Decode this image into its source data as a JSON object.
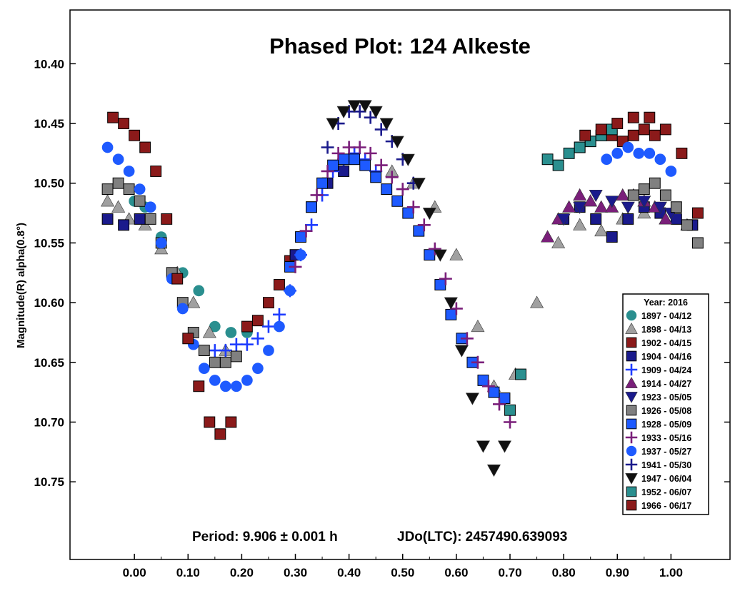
{
  "chart_data": {
    "type": "scatter",
    "title": "Phased Plot: 124 Alkeste",
    "xlabel": "",
    "ylabel": "Magnitude(R) alpha(0.8°)",
    "xlim": [
      -0.12,
      1.11
    ],
    "ylim": [
      10.355,
      10.815
    ],
    "y_inverted": true,
    "grid": false,
    "x_ticks": [
      "0.00",
      "0.10",
      "0.20",
      "0.30",
      "0.40",
      "0.50",
      "0.60",
      "0.70",
      "0.80",
      "0.90",
      "1.00"
    ],
    "y_ticks": [
      "10.40",
      "10.45",
      "10.50",
      "10.55",
      "10.60",
      "10.65",
      "10.70",
      "10.75"
    ],
    "annotation_period": "Period: 9.906 ± 0.001 h",
    "annotation_epoch": "JDo(LTC): 2457490.639093",
    "legend_title": "Year: 2016",
    "legend_position": "right",
    "series": [
      {
        "name": "1897 - 04/12",
        "marker": "circle",
        "color": "#2a8f8f",
        "x": [
          0.0,
          0.02,
          0.05,
          0.09,
          0.12,
          0.15,
          0.18,
          0.21
        ],
        "y": [
          10.515,
          10.52,
          10.545,
          10.575,
          10.59,
          10.62,
          10.625,
          10.625
        ]
      },
      {
        "name": "1898 - 04/13",
        "marker": "triangle-up",
        "color": "#a0a0a0",
        "x": [
          -0.05,
          -0.03,
          -0.01,
          0.02,
          0.05,
          0.08,
          0.11,
          0.14,
          0.17,
          0.48,
          0.52,
          0.56,
          0.6,
          0.64,
          0.67,
          0.71,
          0.75,
          0.79,
          0.83,
          0.87,
          0.91,
          0.95,
          0.99,
          1.03
        ],
        "y": [
          10.515,
          10.52,
          10.53,
          10.535,
          10.555,
          10.575,
          10.6,
          10.625,
          10.64,
          10.49,
          10.5,
          10.52,
          10.56,
          10.62,
          10.67,
          10.66,
          10.6,
          10.55,
          10.535,
          10.54,
          10.53,
          10.525,
          10.53,
          10.535
        ]
      },
      {
        "name": "1902 - 04/15",
        "marker": "square",
        "color": "#8b1a1a",
        "x": [
          0.21,
          0.23,
          0.25,
          0.27,
          0.29,
          0.83,
          0.85,
          0.87,
          0.89,
          0.91,
          0.93,
          0.95,
          0.97
        ],
        "y": [
          10.62,
          10.615,
          10.6,
          10.585,
          10.565,
          10.47,
          10.465,
          10.46,
          10.46,
          10.465,
          10.46,
          10.455,
          10.46
        ]
      },
      {
        "name": "1904 - 04/16",
        "marker": "square",
        "color": "#1a1a8c",
        "x": [
          -0.05,
          -0.02,
          0.01,
          0.3,
          0.33,
          0.36,
          0.39,
          0.8,
          0.83,
          0.86,
          0.89,
          0.92,
          0.95,
          0.98,
          1.01,
          1.04
        ],
        "y": [
          10.53,
          10.535,
          10.53,
          10.56,
          10.52,
          10.5,
          10.49,
          10.53,
          10.52,
          10.53,
          10.545,
          10.53,
          10.52,
          10.525,
          10.53,
          10.535
        ]
      },
      {
        "name": "1909 - 04/24",
        "marker": "plus",
        "color": "#1e3cff",
        "x": [
          0.15,
          0.17,
          0.19,
          0.21,
          0.23,
          0.25,
          0.27,
          0.29,
          0.31,
          0.33,
          0.35,
          0.37,
          0.39,
          0.41,
          0.43,
          0.45
        ],
        "y": [
          10.64,
          10.64,
          10.635,
          10.635,
          10.63,
          10.62,
          10.61,
          10.59,
          10.56,
          10.535,
          10.51,
          10.49,
          10.48,
          10.475,
          10.48,
          10.49
        ]
      },
      {
        "name": "1914 - 04/27",
        "marker": "triangle-up",
        "color": "#7a1f7a",
        "x": [
          0.77,
          0.79,
          0.81,
          0.83,
          0.85,
          0.87,
          0.89,
          0.91,
          0.93,
          0.95,
          0.97,
          0.99
        ],
        "y": [
          10.545,
          10.53,
          10.52,
          10.51,
          10.515,
          10.52,
          10.52,
          10.51,
          10.51,
          10.515,
          10.52,
          10.53
        ]
      },
      {
        "name": "1923 - 05/05",
        "marker": "triangle-down",
        "color": "#1a1a8c",
        "x": [
          0.8,
          0.83,
          0.86,
          0.89,
          0.92,
          0.95,
          0.98,
          1.0
        ],
        "y": [
          10.53,
          10.52,
          10.51,
          10.515,
          10.52,
          10.515,
          10.52,
          10.525
        ]
      },
      {
        "name": "1926 - 05/08",
        "marker": "square",
        "color": "#808080",
        "x": [
          -0.05,
          -0.03,
          -0.01,
          0.01,
          0.03,
          0.05,
          0.07,
          0.09,
          0.11,
          0.13,
          0.15,
          0.17,
          0.19,
          0.93,
          0.95,
          0.97,
          0.99,
          1.01,
          1.03,
          1.05
        ],
        "y": [
          10.505,
          10.5,
          10.505,
          10.515,
          10.53,
          10.55,
          10.575,
          10.6,
          10.625,
          10.64,
          10.65,
          10.65,
          10.645,
          10.51,
          10.505,
          10.5,
          10.51,
          10.52,
          10.535,
          10.55
        ]
      },
      {
        "name": "1928 - 05/09",
        "marker": "square",
        "color": "#1e5aff",
        "x": [
          0.29,
          0.31,
          0.33,
          0.35,
          0.37,
          0.39,
          0.41,
          0.43,
          0.45,
          0.47,
          0.49,
          0.51,
          0.53,
          0.55,
          0.57,
          0.59,
          0.61,
          0.63,
          0.65,
          0.67,
          0.69
        ],
        "y": [
          10.57,
          10.545,
          10.52,
          10.5,
          10.485,
          10.48,
          10.48,
          10.485,
          10.495,
          10.505,
          10.515,
          10.525,
          10.54,
          10.56,
          10.585,
          10.61,
          10.63,
          10.65,
          10.665,
          10.675,
          10.68
        ]
      },
      {
        "name": "1933 - 05/16",
        "marker": "plus",
        "color": "#7a1f7a",
        "x": [
          0.3,
          0.32,
          0.34,
          0.36,
          0.38,
          0.4,
          0.42,
          0.44,
          0.46,
          0.48,
          0.5,
          0.52,
          0.54,
          0.56,
          0.58,
          0.6,
          0.62,
          0.64,
          0.66,
          0.68,
          0.7
        ],
        "y": [
          10.57,
          10.54,
          10.51,
          10.49,
          10.475,
          10.47,
          10.47,
          10.475,
          10.485,
          10.495,
          10.505,
          10.52,
          10.535,
          10.555,
          10.58,
          10.605,
          10.63,
          10.65,
          10.67,
          10.685,
          10.7
        ]
      },
      {
        "name": "1937 - 05/27",
        "marker": "circle",
        "color": "#1e5aff",
        "x": [
          -0.05,
          -0.03,
          -0.01,
          0.01,
          0.03,
          0.05,
          0.07,
          0.09,
          0.11,
          0.13,
          0.15,
          0.17,
          0.19,
          0.21,
          0.23,
          0.25,
          0.27,
          0.29,
          0.31,
          0.88,
          0.9,
          0.92,
          0.94,
          0.96,
          0.98,
          1.0
        ],
        "y": [
          10.47,
          10.48,
          10.49,
          10.505,
          10.52,
          10.55,
          10.58,
          10.605,
          10.635,
          10.655,
          10.665,
          10.67,
          10.67,
          10.665,
          10.655,
          10.64,
          10.62,
          10.59,
          10.56,
          10.48,
          10.475,
          10.47,
          10.475,
          10.475,
          10.48,
          10.49
        ]
      },
      {
        "name": "1941 - 05/30",
        "marker": "plus",
        "color": "#1a1a8c",
        "x": [
          0.36,
          0.38,
          0.4,
          0.42,
          0.44,
          0.46,
          0.48,
          0.5,
          0.52
        ],
        "y": [
          10.47,
          10.45,
          10.44,
          10.44,
          10.445,
          10.455,
          10.465,
          10.48,
          10.5
        ]
      },
      {
        "name": "1947 - 06/04",
        "marker": "triangle-down",
        "color": "#111111",
        "x": [
          0.37,
          0.39,
          0.41,
          0.43,
          0.45,
          0.47,
          0.49,
          0.51,
          0.53,
          0.55,
          0.57,
          0.59,
          0.61,
          0.63,
          0.65,
          0.67,
          0.69
        ],
        "y": [
          10.45,
          10.44,
          10.435,
          10.435,
          10.44,
          10.45,
          10.465,
          10.48,
          10.5,
          10.525,
          10.56,
          10.6,
          10.64,
          10.68,
          10.72,
          10.74,
          10.72
        ]
      },
      {
        "name": "1952 - 06/07",
        "marker": "square",
        "color": "#2a8f8f",
        "x": [
          0.77,
          0.79,
          0.81,
          0.83,
          0.85,
          0.87,
          0.89,
          0.7,
          0.72
        ],
        "y": [
          10.48,
          10.485,
          10.475,
          10.47,
          10.465,
          10.46,
          10.455,
          10.69,
          10.66
        ]
      },
      {
        "name": "1966 - 06/17",
        "marker": "square",
        "color": "#8b1a1a",
        "x": [
          -0.04,
          -0.02,
          0.0,
          0.02,
          0.04,
          0.06,
          0.08,
          0.1,
          0.12,
          0.14,
          0.16,
          0.18,
          0.84,
          0.87,
          0.9,
          0.93,
          0.96,
          0.99,
          1.02,
          1.05
        ],
        "y": [
          10.445,
          10.45,
          10.46,
          10.47,
          10.49,
          10.53,
          10.58,
          10.63,
          10.67,
          10.7,
          10.71,
          10.7,
          10.46,
          10.455,
          10.45,
          10.445,
          10.445,
          10.455,
          10.475,
          10.525
        ]
      }
    ]
  }
}
